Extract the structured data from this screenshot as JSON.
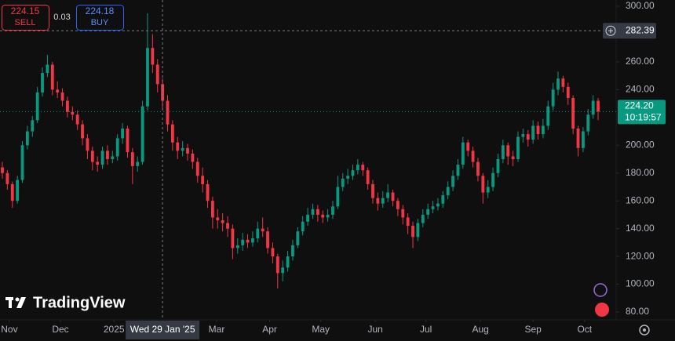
{
  "chart_data": {
    "type": "candlestick",
    "logo": "TradingView",
    "sell": {
      "price": 224.15,
      "label": "SELL"
    },
    "buy": {
      "price": 224.18,
      "label": "BUY"
    },
    "spread": 0.03,
    "last_price": {
      "value": 224.2,
      "label": "224.20"
    },
    "countdown": "10:19:57",
    "crosshair": {
      "x": {
        "value": 32,
        "label": "Wed 29 Jan '25"
      },
      "y": 282.39
    },
    "up_color": "#089981",
    "down_color": "#f23645",
    "xlim": [
      -0.47,
      122.6
    ],
    "xticks": [
      {
        "value": 1.4,
        "label": "Nov"
      },
      {
        "value": 11.6,
        "label": "Dec"
      },
      {
        "value": 22.3,
        "label": "2025"
      },
      {
        "value": 42.8,
        "label": "Mar"
      },
      {
        "value": 53.4,
        "label": "Apr"
      },
      {
        "value": 63.6,
        "label": "May"
      },
      {
        "value": 74.5,
        "label": "Jun"
      },
      {
        "value": 84.6,
        "label": "Jul"
      },
      {
        "value": 95.5,
        "label": "Aug"
      },
      {
        "value": 106,
        "label": "Sep"
      },
      {
        "value": 116.3,
        "label": "Oct"
      }
    ],
    "ylim": [
      80,
      300
    ],
    "yticks": [
      {
        "value": 300,
        "label": "300.00"
      },
      {
        "value": 260,
        "label": "260.00"
      },
      {
        "value": 240,
        "label": "240.00"
      },
      {
        "value": 200,
        "label": "200.00"
      },
      {
        "value": 180,
        "label": "180.00"
      },
      {
        "value": 160,
        "label": "160.00"
      },
      {
        "value": 140,
        "label": "140.00"
      },
      {
        "value": 120,
        "label": "120.00"
      },
      {
        "value": 100,
        "label": "100.00"
      },
      {
        "value": 80,
        "label": "80.00"
      }
    ],
    "open": [
      184,
      180,
      172,
      160,
      175,
      200,
      210,
      218,
      238,
      252,
      258,
      240,
      238,
      232,
      224,
      222,
      215,
      205,
      196,
      188,
      186,
      196,
      190,
      192,
      205,
      212,
      195,
      185,
      188,
      228,
      270,
      258,
      244,
      232,
      215,
      202,
      196,
      198,
      194,
      188,
      178,
      172,
      160,
      148,
      146,
      144,
      140,
      126,
      128,
      132,
      130,
      133,
      140,
      138,
      126,
      120,
      108,
      112,
      120,
      128,
      138,
      145,
      150,
      154,
      150,
      148,
      150,
      156,
      170,
      176,
      178,
      182,
      186,
      182,
      172,
      162,
      158,
      162,
      166,
      160,
      154,
      148,
      142,
      134,
      144,
      150,
      154,
      156,
      158,
      164,
      170,
      178,
      186,
      202,
      196,
      188,
      178,
      166,
      170,
      180,
      190,
      200,
      192,
      190,
      206,
      208,
      204,
      214,
      208,
      214,
      228,
      240,
      248,
      242,
      234,
      212,
      198,
      210,
      222,
      232
    ],
    "high": [
      188,
      182,
      174,
      178,
      203,
      214,
      221,
      242,
      256,
      265,
      260,
      246,
      241,
      235,
      228,
      225,
      218,
      208,
      199,
      192,
      199,
      200,
      196,
      208,
      216,
      214,
      198,
      192,
      232,
      295,
      280,
      262,
      248,
      236,
      218,
      206,
      203,
      201,
      197,
      191,
      184,
      175,
      163,
      154,
      151,
      149,
      143,
      133,
      137,
      136,
      138,
      145,
      148,
      141,
      130,
      122,
      117,
      124,
      132,
      141,
      149,
      155,
      158,
      157,
      153,
      154,
      160,
      178,
      180,
      183,
      186,
      190,
      188,
      184,
      175,
      166,
      167,
      172,
      168,
      162,
      157,
      151,
      145,
      147,
      154,
      158,
      160,
      162,
      167,
      174,
      182,
      190,
      206,
      204,
      199,
      191,
      180,
      175,
      184,
      194,
      204,
      202,
      196,
      210,
      212,
      211,
      218,
      217,
      219,
      232,
      245,
      253,
      250,
      245,
      236,
      214,
      213,
      226,
      236,
      234
    ],
    "low": [
      176,
      168,
      155,
      158,
      173,
      197,
      206,
      216,
      235,
      249,
      236,
      234,
      228,
      220,
      218,
      211,
      200,
      190,
      182,
      181,
      183,
      186,
      187,
      189,
      201,
      191,
      172,
      181,
      186,
      225,
      252,
      238,
      226,
      210,
      196,
      190,
      192,
      189,
      183,
      173,
      166,
      155,
      140,
      140,
      138,
      134,
      118,
      122,
      124,
      126,
      127,
      130,
      134,
      122,
      115,
      97,
      102,
      109,
      117,
      126,
      135,
      142,
      147,
      145,
      144,
      145,
      147,
      154,
      167,
      172,
      175,
      179,
      178,
      168,
      158,
      153,
      155,
      159,
      156,
      149,
      143,
      136,
      126,
      131,
      141,
      147,
      151,
      153,
      155,
      161,
      167,
      175,
      183,
      192,
      184,
      174,
      158,
      162,
      167,
      177,
      187,
      186,
      185,
      188,
      202,
      199,
      201,
      204,
      205,
      211,
      225,
      236,
      238,
      229,
      208,
      192,
      195,
      207,
      219,
      218
    ],
    "close": [
      180,
      172,
      160,
      175,
      200,
      210,
      218,
      238,
      252,
      258,
      240,
      238,
      232,
      224,
      222,
      215,
      205,
      196,
      188,
      186,
      196,
      190,
      192,
      205,
      212,
      195,
      185,
      188,
      228,
      270,
      258,
      244,
      232,
      215,
      202,
      196,
      198,
      194,
      188,
      178,
      172,
      160,
      148,
      146,
      144,
      140,
      126,
      128,
      132,
      130,
      133,
      140,
      138,
      126,
      120,
      108,
      112,
      120,
      128,
      138,
      145,
      150,
      154,
      150,
      148,
      150,
      156,
      170,
      176,
      178,
      182,
      186,
      182,
      172,
      162,
      158,
      162,
      166,
      160,
      154,
      148,
      142,
      134,
      144,
      150,
      154,
      156,
      158,
      164,
      170,
      178,
      186,
      202,
      196,
      188,
      178,
      166,
      170,
      180,
      190,
      200,
      192,
      190,
      206,
      208,
      204,
      214,
      208,
      214,
      228,
      240,
      248,
      242,
      234,
      212,
      198,
      210,
      222,
      232,
      224.2
    ]
  }
}
